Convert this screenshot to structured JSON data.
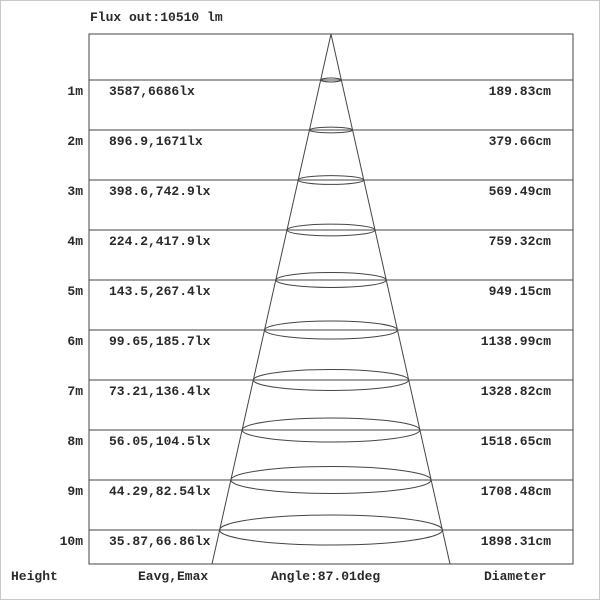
{
  "title": "Flux out:10510 lm",
  "footer": {
    "height_label": "Height",
    "eavg_label": "Eavg,Emax",
    "angle_label": "Angle:87.01deg",
    "diameter_label": "Diameter"
  },
  "rows": [
    {
      "height": "1m",
      "eavg_emax": "3587,6686lx",
      "diameter": "189.83cm"
    },
    {
      "height": "2m",
      "eavg_emax": "896.9,1671lx",
      "diameter": "379.66cm"
    },
    {
      "height": "3m",
      "eavg_emax": "398.6,742.9lx",
      "diameter": "569.49cm"
    },
    {
      "height": "4m",
      "eavg_emax": "224.2,417.9lx",
      "diameter": "759.32cm"
    },
    {
      "height": "5m",
      "eavg_emax": "143.5,267.4lx",
      "diameter": "949.15cm"
    },
    {
      "height": "6m",
      "eavg_emax": "99.65,185.7lx",
      "diameter": "1138.99cm"
    },
    {
      "height": "7m",
      "eavg_emax": "73.21,136.4lx",
      "diameter": "1328.82cm"
    },
    {
      "height": "8m",
      "eavg_emax": "56.05,104.5lx",
      "diameter": "1518.65cm"
    },
    {
      "height": "9m",
      "eavg_emax": "44.29,82.54lx",
      "diameter": "1708.48cm"
    },
    {
      "height": "10m",
      "eavg_emax": "35.87,66.86lx",
      "diameter": "1898.31cm"
    }
  ],
  "colors": {
    "line": "#454545",
    "text": "#2a2a2a",
    "background": "#ffffff"
  }
}
